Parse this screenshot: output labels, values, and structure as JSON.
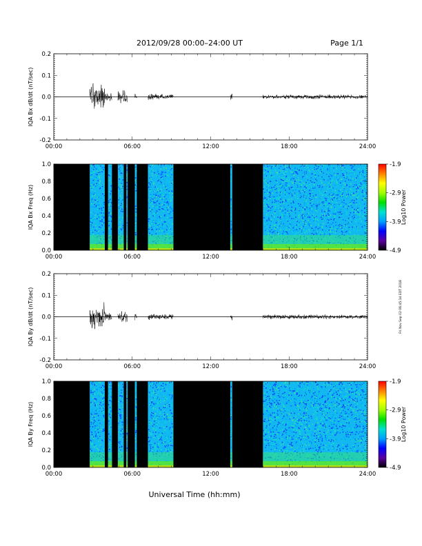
{
  "header": {
    "date_range": "2012/09/28  00:00–24:00 UT",
    "page": "Page 1/1"
  },
  "footer": {
    "x_axis_label": "Universal Time (hh:mm)"
  },
  "side_note": "Fri Nov Sep 02 06:45:14 EDT 2018",
  "colors": {
    "background": "#ffffff",
    "ink": "#000000",
    "spectrogram_off": "#000000"
  },
  "colorbar": {
    "label": "Log10 Power",
    "ticks": [
      "-1.9",
      "-2.9",
      "-3.9",
      "-4.9"
    ],
    "tick_values": [
      -1.9,
      -2.9,
      -3.9,
      -4.9
    ],
    "range": [
      -4.9,
      -1.9
    ],
    "stops": [
      "#000000",
      "#5a00a0",
      "#0000ff",
      "#00a0ff",
      "#00e0d0",
      "#00e000",
      "#a0ff00",
      "#ffff00",
      "#ff8000",
      "#ff0000"
    ]
  },
  "chart_data": [
    {
      "type": "line",
      "ylabel": "IQA Bx dB/dt (nT/sec)",
      "xlim": [
        0,
        24
      ],
      "ylim": [
        -0.2,
        0.2
      ],
      "x_ticks": [
        "00:00",
        "06:00",
        "12:00",
        "18:00",
        "24:00"
      ],
      "y_ticks": [
        "0.2",
        "0.1",
        "0.0",
        "-0.1",
        "-0.2"
      ],
      "y_tick_values": [
        0.2,
        0.1,
        0.0,
        -0.1,
        -0.2
      ],
      "baseline": 0.0,
      "data_segments_hours": [
        [
          2.75,
          3.9
        ],
        [
          4.15,
          4.45
        ],
        [
          4.9,
          5.35
        ],
        [
          5.55,
          5.65
        ],
        [
          6.2,
          6.35
        ],
        [
          7.2,
          9.15
        ],
        [
          13.5,
          13.65
        ],
        [
          16.0,
          24.0
        ]
      ],
      "envelope": [
        {
          "range": [
            2.75,
            3.9
          ],
          "amp": 0.07
        },
        {
          "range": [
            3.9,
            4.45
          ],
          "amp": 0.025
        },
        {
          "range": [
            4.9,
            5.65
          ],
          "amp": 0.035
        },
        {
          "range": [
            6.2,
            6.35
          ],
          "amp": 0.02
        },
        {
          "range": [
            7.2,
            9.15
          ],
          "amp": 0.015
        },
        {
          "range": [
            13.5,
            13.65
          ],
          "amp": 0.02
        },
        {
          "range": [
            16.0,
            24.0
          ],
          "amp": 0.012
        }
      ]
    },
    {
      "type": "heatmap",
      "ylabel": "IQA Bx Freq (Hz)",
      "xlim": [
        0,
        24
      ],
      "ylim": [
        0.0,
        1.0
      ],
      "x_ticks": [
        "00:00",
        "06:00",
        "12:00",
        "18:00",
        "24:00"
      ],
      "y_ticks": [
        "1.0",
        "0.8",
        "0.6",
        "0.4",
        "0.2",
        "0.0"
      ],
      "y_tick_values": [
        1.0,
        0.8,
        0.6,
        0.4,
        0.2,
        0.0
      ],
      "data_segments_hours": [
        [
          2.75,
          3.9
        ],
        [
          4.15,
          4.45
        ],
        [
          4.9,
          5.35
        ],
        [
          5.55,
          5.65
        ],
        [
          6.2,
          6.35
        ],
        [
          7.2,
          9.15
        ],
        [
          13.5,
          13.65
        ],
        [
          16.0,
          24.0
        ]
      ],
      "colorbar": "Log10 Power"
    },
    {
      "type": "line",
      "ylabel": "IQA By dB/dt (nT/sec)",
      "xlim": [
        0,
        24
      ],
      "ylim": [
        -0.2,
        0.2
      ],
      "x_ticks": [
        "00:00",
        "06:00",
        "12:00",
        "18:00",
        "24:00"
      ],
      "y_ticks": [
        "0.2",
        "0.1",
        "0.0",
        "-0.1",
        "-0.2"
      ],
      "y_tick_values": [
        0.2,
        0.1,
        0.0,
        -0.1,
        -0.2
      ],
      "baseline": 0.0,
      "data_segments_hours": [
        [
          2.75,
          3.9
        ],
        [
          4.15,
          4.45
        ],
        [
          4.9,
          5.35
        ],
        [
          5.55,
          5.65
        ],
        [
          6.2,
          6.35
        ],
        [
          7.2,
          9.15
        ],
        [
          13.5,
          13.65
        ],
        [
          16.0,
          24.0
        ]
      ],
      "envelope": [
        {
          "range": [
            2.75,
            3.9
          ],
          "amp": 0.07
        },
        {
          "range": [
            3.9,
            4.45
          ],
          "amp": 0.025
        },
        {
          "range": [
            4.9,
            5.65
          ],
          "amp": 0.03
        },
        {
          "range": [
            6.2,
            6.35
          ],
          "amp": 0.02
        },
        {
          "range": [
            7.2,
            9.15
          ],
          "amp": 0.015
        },
        {
          "range": [
            13.5,
            13.65
          ],
          "amp": 0.02
        },
        {
          "range": [
            16.0,
            24.0
          ],
          "amp": 0.012
        }
      ]
    },
    {
      "type": "heatmap",
      "ylabel": "IQA By Freq (Hz)",
      "xlim": [
        0,
        24
      ],
      "ylim": [
        0.0,
        1.0
      ],
      "x_ticks": [
        "00:00",
        "06:00",
        "12:00",
        "18:00",
        "24:00"
      ],
      "y_ticks": [
        "1.0",
        "0.8",
        "0.6",
        "0.4",
        "0.2",
        "0.0"
      ],
      "y_tick_values": [
        1.0,
        0.8,
        0.6,
        0.4,
        0.2,
        0.0
      ],
      "data_segments_hours": [
        [
          2.75,
          3.9
        ],
        [
          4.15,
          4.45
        ],
        [
          4.9,
          5.35
        ],
        [
          5.55,
          5.65
        ],
        [
          6.2,
          6.35
        ],
        [
          7.2,
          9.15
        ],
        [
          13.5,
          13.65
        ],
        [
          16.0,
          24.0
        ]
      ],
      "colorbar": "Log10 Power"
    }
  ]
}
